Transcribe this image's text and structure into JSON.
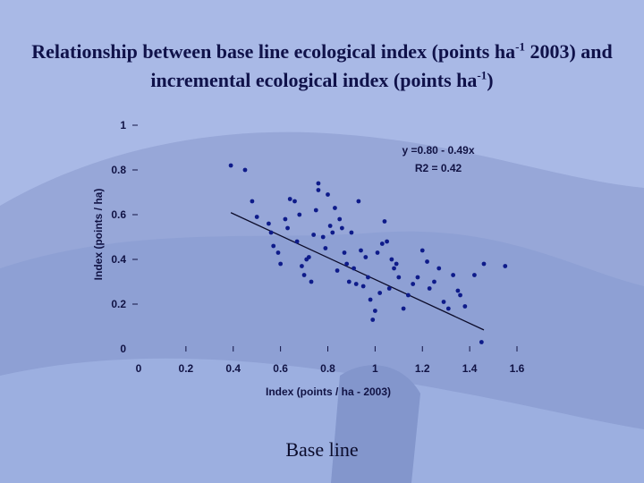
{
  "slide": {
    "title_part1": "Relationship between base line ecological index (points ha",
    "title_sup1": "-1",
    "title_part2": " 2003) and incremental ecological index (points ha",
    "title_sup2": "-1",
    "title_part3": ")",
    "caption": "Base line"
  },
  "colors": {
    "background": "#a9b9e6",
    "points": "#0e1b8a",
    "text": "#111344",
    "line": "#0c0c2a"
  },
  "chart_data": {
    "type": "scatter",
    "xlabel": "Index (points / ha - 2003)",
    "ylabel": "Index (points / ha)",
    "xlim": [
      0,
      1.6
    ],
    "ylim": [
      0,
      1
    ],
    "x_ticks": [
      "0",
      "0.2",
      "0.4",
      "0.6",
      "0.8",
      "1",
      "1.2",
      "1.4",
      "1.6"
    ],
    "y_ticks": [
      "0",
      "0.2",
      "0.4",
      "0.6",
      "0.8",
      "1"
    ],
    "grid": false,
    "annotations": [
      "y =0.80 - 0.49x",
      "R2 = 0.42"
    ],
    "trendline": {
      "intercept": 0.8,
      "slope": -0.49,
      "x_range": [
        0.39,
        1.46
      ]
    },
    "points": [
      [
        0.39,
        0.82
      ],
      [
        0.45,
        0.8
      ],
      [
        0.48,
        0.66
      ],
      [
        0.5,
        0.59
      ],
      [
        0.55,
        0.56
      ],
      [
        0.56,
        0.52
      ],
      [
        0.57,
        0.46
      ],
      [
        0.59,
        0.43
      ],
      [
        0.6,
        0.38
      ],
      [
        0.62,
        0.58
      ],
      [
        0.63,
        0.54
      ],
      [
        0.64,
        0.67
      ],
      [
        0.66,
        0.66
      ],
      [
        0.67,
        0.48
      ],
      [
        0.68,
        0.6
      ],
      [
        0.69,
        0.37
      ],
      [
        0.7,
        0.33
      ],
      [
        0.71,
        0.4
      ],
      [
        0.72,
        0.41
      ],
      [
        0.73,
        0.3
      ],
      [
        0.74,
        0.51
      ],
      [
        0.75,
        0.62
      ],
      [
        0.76,
        0.74
      ],
      [
        0.76,
        0.71
      ],
      [
        0.78,
        0.5
      ],
      [
        0.79,
        0.45
      ],
      [
        0.8,
        0.69
      ],
      [
        0.81,
        0.55
      ],
      [
        0.82,
        0.52
      ],
      [
        0.83,
        0.63
      ],
      [
        0.84,
        0.35
      ],
      [
        0.85,
        0.58
      ],
      [
        0.86,
        0.54
      ],
      [
        0.87,
        0.43
      ],
      [
        0.88,
        0.38
      ],
      [
        0.89,
        0.3
      ],
      [
        0.9,
        0.52
      ],
      [
        0.91,
        0.36
      ],
      [
        0.92,
        0.29
      ],
      [
        0.93,
        0.66
      ],
      [
        0.94,
        0.44
      ],
      [
        0.95,
        0.28
      ],
      [
        0.96,
        0.41
      ],
      [
        0.97,
        0.32
      ],
      [
        0.98,
        0.22
      ],
      [
        0.99,
        0.13
      ],
      [
        1.0,
        0.17
      ],
      [
        1.01,
        0.43
      ],
      [
        1.02,
        0.25
      ],
      [
        1.03,
        0.47
      ],
      [
        1.04,
        0.57
      ],
      [
        1.05,
        0.48
      ],
      [
        1.06,
        0.27
      ],
      [
        1.07,
        0.4
      ],
      [
        1.08,
        0.36
      ],
      [
        1.09,
        0.38
      ],
      [
        1.1,
        0.32
      ],
      [
        1.12,
        0.18
      ],
      [
        1.14,
        0.24
      ],
      [
        1.16,
        0.29
      ],
      [
        1.18,
        0.32
      ],
      [
        1.2,
        0.44
      ],
      [
        1.22,
        0.39
      ],
      [
        1.23,
        0.27
      ],
      [
        1.25,
        0.3
      ],
      [
        1.27,
        0.36
      ],
      [
        1.29,
        0.21
      ],
      [
        1.31,
        0.18
      ],
      [
        1.33,
        0.33
      ],
      [
        1.35,
        0.26
      ],
      [
        1.36,
        0.24
      ],
      [
        1.38,
        0.19
      ],
      [
        1.42,
        0.33
      ],
      [
        1.46,
        0.38
      ],
      [
        1.55,
        0.37
      ],
      [
        1.45,
        0.03
      ]
    ]
  }
}
